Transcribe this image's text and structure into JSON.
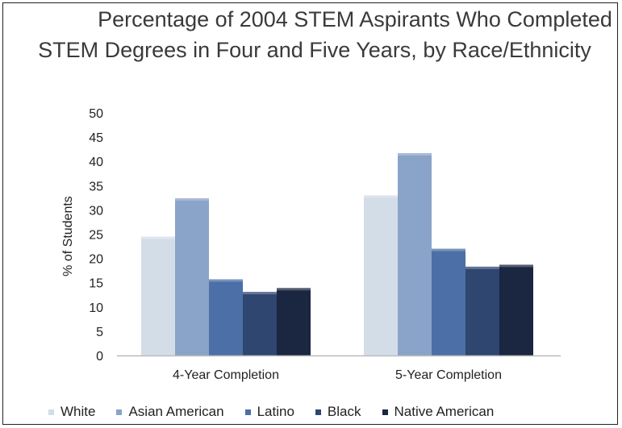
{
  "chart_data": {
    "type": "bar",
    "title": "Percentage of 2004 STEM Aspirants Who Completed STEM Degrees in Four and Five Years, by Race/Ethnicity",
    "title_lines": [
      "Percentage of 2004 STEM Aspirants Who Completed",
      "STEM Degrees in Four and Five Years, by Race/Ethnicity"
    ],
    "xlabel": "",
    "ylabel": "% of Students",
    "ylim": [
      0,
      50
    ],
    "yticks": [
      "0",
      "5",
      "10",
      "15",
      "20",
      "25",
      "30",
      "35",
      "40",
      "45",
      "50"
    ],
    "grid": false,
    "legend_position": "bottom",
    "categories": [
      "4-Year Completion",
      "5-Year Completion"
    ],
    "series": [
      {
        "name": "White",
        "color": "#d3dde8",
        "values": [
          24.5,
          33
        ]
      },
      {
        "name": "Asian American",
        "color": "#8aa3c8",
        "values": [
          32.4,
          41.7
        ]
      },
      {
        "name": "Latino",
        "color": "#4b6fa6",
        "values": [
          15.7,
          22
        ]
      },
      {
        "name": "Black",
        "color": "#2e4670",
        "values": [
          13.1,
          18.3
        ]
      },
      {
        "name": "Native American",
        "color": "#1b2640",
        "values": [
          13.9,
          18.7
        ]
      }
    ]
  }
}
